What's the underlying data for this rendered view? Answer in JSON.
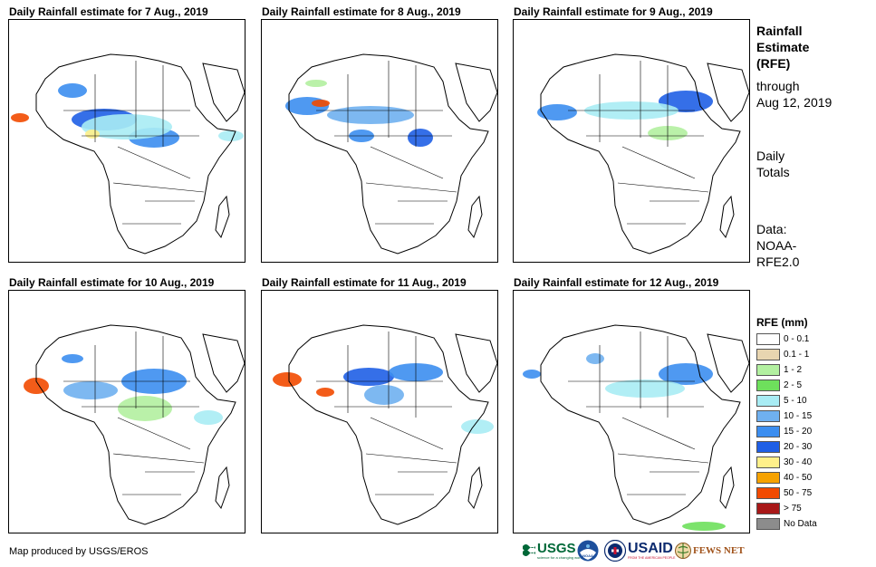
{
  "panels": [
    {
      "title": "Daily Rainfall estimate for 7 Aug., 2019"
    },
    {
      "title": "Daily Rainfall estimate for 8 Aug., 2019"
    },
    {
      "title": "Daily Rainfall estimate for 9 Aug., 2019"
    },
    {
      "title": "Daily Rainfall estimate for 10 Aug., 2019"
    },
    {
      "title": "Daily Rainfall estimate for 11 Aug., 2019"
    },
    {
      "title": "Daily Rainfall estimate for 12 Aug., 2019"
    }
  ],
  "sidebar": {
    "heading_line1": "Rainfall",
    "heading_line2": "Estimate",
    "heading_line3": "(RFE)",
    "through_label": "through",
    "through_date": "Aug 12, 2019",
    "totals_line1": "Daily",
    "totals_line2": "Totals",
    "data_line1": "Data:",
    "data_line2": "NOAA-",
    "data_line3": "RFE2.0"
  },
  "legend": {
    "title": "RFE (mm)",
    "items": [
      {
        "label": "0 - 0.1",
        "color": "#ffffff"
      },
      {
        "label": "0.1 - 1",
        "color": "#e8d5b0"
      },
      {
        "label": "1 - 2",
        "color": "#b2f0a0"
      },
      {
        "label": "2 - 5",
        "color": "#6ee05c"
      },
      {
        "label": "5 - 10",
        "color": "#a8ecf4"
      },
      {
        "label": "10 - 15",
        "color": "#6fb0f0"
      },
      {
        "label": "15 - 20",
        "color": "#3c8ef0"
      },
      {
        "label": "20 - 30",
        "color": "#1f5fe6"
      },
      {
        "label": "30 - 40",
        "color": "#fff08a"
      },
      {
        "label": "40 - 50",
        "color": "#f6a200"
      },
      {
        "label": "50 - 75",
        "color": "#f24a00"
      },
      {
        "label": "> 75",
        "color": "#a81818"
      },
      {
        "label": "No Data",
        "color": "#8c8c8c"
      }
    ]
  },
  "footer": {
    "credit": "Map produced by USGS/EROS",
    "logos": {
      "usgs": "USGS",
      "usgs_tagline": "science for a changing world",
      "noaa": "NOAA",
      "usaid": "USAID",
      "usaid_tagline": "FROM THE AMERICAN PEOPLE",
      "fewsnet": "FEWS NET"
    }
  }
}
